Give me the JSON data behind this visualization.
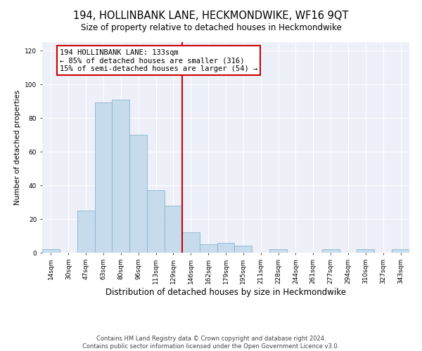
{
  "title": "194, HOLLINBANK LANE, HECKMONDWIKE, WF16 9QT",
  "subtitle": "Size of property relative to detached houses in Heckmondwike",
  "xlabel": "Distribution of detached houses by size in Heckmondwike",
  "ylabel": "Number of detached properties",
  "bar_labels": [
    "14sqm",
    "30sqm",
    "47sqm",
    "63sqm",
    "80sqm",
    "96sqm",
    "113sqm",
    "129sqm",
    "146sqm",
    "162sqm",
    "179sqm",
    "195sqm",
    "211sqm",
    "228sqm",
    "244sqm",
    "261sqm",
    "277sqm",
    "294sqm",
    "310sqm",
    "327sqm",
    "343sqm"
  ],
  "bar_values": [
    2,
    0,
    25,
    89,
    91,
    70,
    37,
    28,
    12,
    5,
    6,
    4,
    0,
    2,
    0,
    0,
    2,
    0,
    2,
    0,
    2
  ],
  "bar_color": "#c6dcec",
  "bar_edgecolor": "#8ab4cc",
  "vline_x": 7.5,
  "vline_color": "#cc0000",
  "annotation_title": "194 HOLLINBANK LANE: 133sqm",
  "annotation_line1": "← 85% of detached houses are smaller (316)",
  "annotation_line2": "15% of semi-detached houses are larger (54) →",
  "annotation_box_edgecolor": "#cc0000",
  "ylim": [
    0,
    125
  ],
  "yticks": [
    0,
    20,
    40,
    60,
    80,
    100,
    120
  ],
  "footer1": "Contains HM Land Registry data © Crown copyright and database right 2024.",
  "footer2": "Contains public sector information licensed under the Open Government Licence v3.0.",
  "background_color": "#edf0f8",
  "title_fontsize": 10.5,
  "subtitle_fontsize": 8.5,
  "xlabel_fontsize": 8.5,
  "ylabel_fontsize": 7.5,
  "tick_fontsize": 6.5,
  "annotation_fontsize": 7.5,
  "footer_fontsize": 6.0
}
